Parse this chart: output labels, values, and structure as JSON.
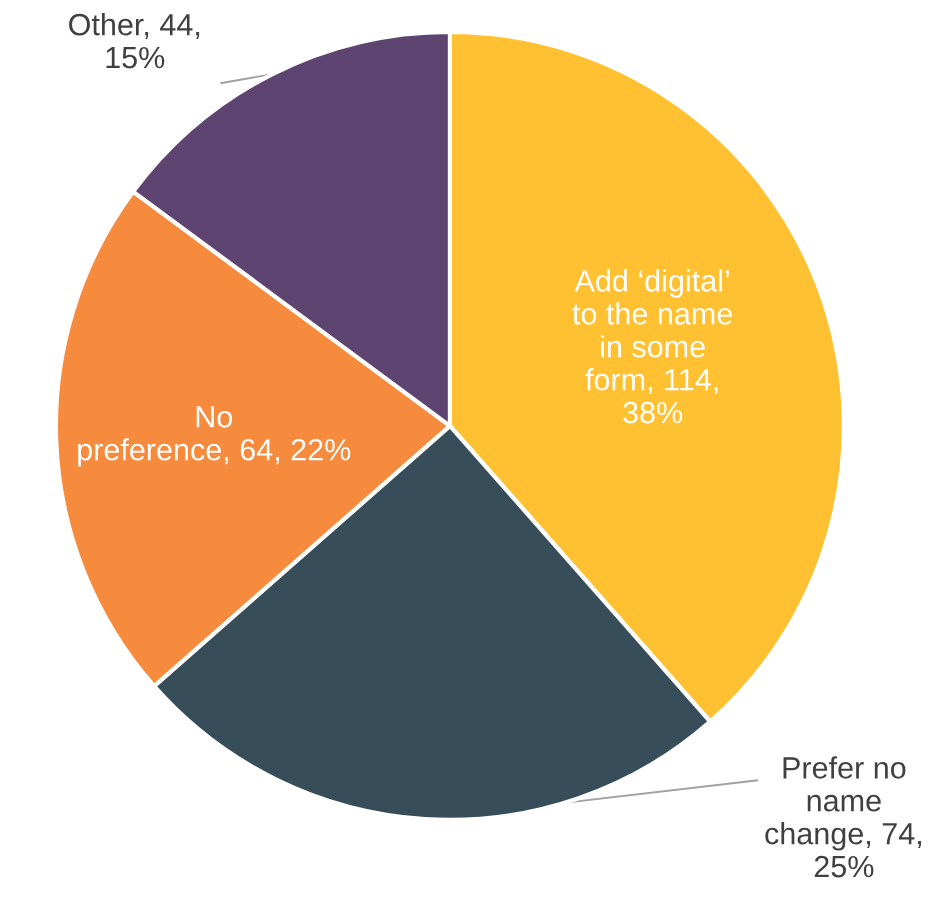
{
  "chart_data": {
    "type": "pie",
    "categories": [
      "Add ‘digital’\nto the name\nin some\nform",
      "Prefer no\nname\nchange",
      "No\npreference",
      "Other"
    ],
    "values": [
      114,
      74,
      64,
      44
    ],
    "value_labels": [
      "114,\n38%",
      "74,\n25%",
      "64, 22%",
      "44,\n15%"
    ],
    "colors": [
      "#ffc132",
      "#374e5a",
      "#f68b3e",
      "#5e4571"
    ]
  }
}
